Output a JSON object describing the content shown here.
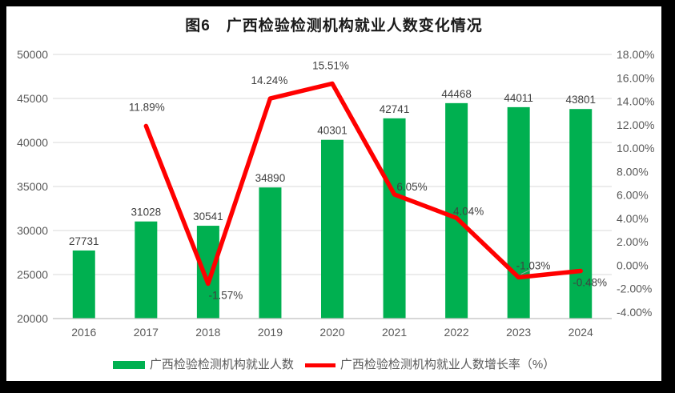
{
  "chart_data": {
    "type": "bar",
    "combo_types": [
      "bar",
      "line"
    ],
    "title": "图6　广西检验检测机构就业人数变化情况",
    "categories": [
      "2016",
      "2017",
      "2018",
      "2019",
      "2020",
      "2021",
      "2022",
      "2023",
      "2024"
    ],
    "series": [
      {
        "name": "广西检验检测机构就业人数",
        "type": "bar",
        "axis": "left",
        "color": "#00B050",
        "values": [
          27731,
          31028,
          30541,
          34890,
          40301,
          42741,
          44468,
          44011,
          43801
        ],
        "labels": [
          "27731",
          "31028",
          "30541",
          "34890",
          "40301",
          "42741",
          "44468",
          "44011",
          "43801"
        ]
      },
      {
        "name": "广西检验检测机构就业人数增长率（%）",
        "type": "line",
        "axis": "right",
        "color": "#FF0000",
        "values": [
          null,
          11.89,
          -1.57,
          14.24,
          15.51,
          6.05,
          4.04,
          -1.03,
          -0.48
        ],
        "labels": [
          null,
          "11.89%",
          "-1.57%",
          "14.24%",
          "15.51%",
          "6.05%",
          "4.04%",
          "-1.03%",
          "-0.48%"
        ]
      }
    ],
    "left_axis": {
      "min": 20000,
      "max": 50000,
      "step": 5000,
      "tick_labels": [
        "50000",
        "45000",
        "40000",
        "35000",
        "30000",
        "25000",
        "20000"
      ]
    },
    "right_axis": {
      "min": -4,
      "max": 18,
      "step": 2,
      "tick_labels": [
        "18.00%",
        "16.00%",
        "14.00%",
        "12.00%",
        "10.00%",
        "8.00%",
        "6.00%",
        "4.00%",
        "2.00%",
        "0.00%",
        "-2.00%",
        "-4.00%"
      ]
    },
    "grid": true,
    "legend_position": "bottom",
    "colors": {
      "bar": "#00B050",
      "line": "#FF0000",
      "grid": "#D9D9D9",
      "axis_line": "#BFBFBF",
      "tick_text": "#595959",
      "data_label": "#404040",
      "title_text": "#1A1A1A",
      "leader_line": "#A6A6A6",
      "background": "#FFFFFF",
      "frame": "#000000"
    }
  }
}
